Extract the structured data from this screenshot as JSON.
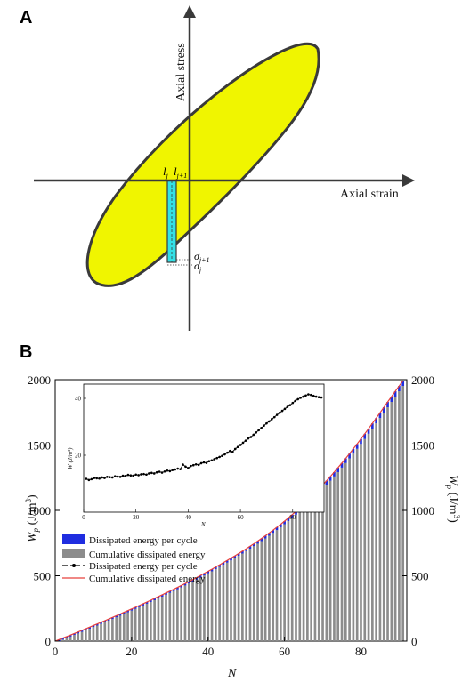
{
  "panel_a": {
    "letter": "A",
    "x_axis_label": "Axial strain",
    "y_axis_label": "Axial stress",
    "labels": {
      "l_j": "l",
      "l_j_sub": "j",
      "l_j1": "l",
      "l_j1_sub": "j+1",
      "sigma_j1": "σ",
      "sigma_j1_sub": "j+1",
      "sigma_j": "σ",
      "sigma_j_sub": "j"
    },
    "colors": {
      "loop_fill": "#f0f500",
      "strip_fill": "#33e0e6",
      "outline": "#3a3a3a"
    }
  },
  "panel_b": {
    "letter": "B",
    "left_ylabel_main": "W",
    "left_ylabel_sub": "p",
    "left_ylabel_unit": " (J/m",
    "left_ylabel_sup": "3",
    "left_ylabel_close": ")",
    "xlabel": "N",
    "inset_xlabel": "N",
    "inset_ylabel": "W (J/m³)",
    "colors": {
      "bar_gray": "#8c8c8c",
      "bar_blue": "#1f2de0",
      "line_red": "#e8413c",
      "line_black": "#000000"
    }
  },
  "legend": [
    {
      "label": "Dissipated energy per cycle",
      "marker": "blue-rect"
    },
    {
      "label": "Cumulative dissipated energy",
      "marker": "gray-rect"
    },
    {
      "label": "Dissipated energy per cycle",
      "marker": "black-dash-dot"
    },
    {
      "label": "Cumulative dissipated energy",
      "marker": "red-line"
    }
  ],
  "chart_data": [
    {
      "type": "bar",
      "title": "",
      "xlabel": "N",
      "ylabel": "Wp (J/m3)",
      "xlim": [
        0,
        92
      ],
      "ylim": [
        0,
        2000
      ],
      "x_ticks": [
        0,
        20,
        40,
        60,
        80
      ],
      "y_ticks": [
        0,
        500,
        1000,
        1500,
        2000
      ],
      "grid": false,
      "legend_placement": "lower-left",
      "n_cycles": 91,
      "x": [
        1,
        2,
        3,
        4,
        5,
        6,
        7,
        8,
        9,
        10,
        11,
        12,
        13,
        14,
        15,
        16,
        17,
        18,
        19,
        20,
        21,
        22,
        23,
        24,
        25,
        26,
        27,
        28,
        29,
        30,
        31,
        32,
        33,
        34,
        35,
        36,
        37,
        38,
        39,
        40,
        41,
        42,
        43,
        44,
        45,
        46,
        47,
        48,
        49,
        50,
        51,
        52,
        53,
        54,
        55,
        56,
        57,
        58,
        59,
        60,
        61,
        62,
        63,
        64,
        65,
        66,
        67,
        68,
        69,
        70,
        71,
        72,
        73,
        74,
        75,
        76,
        77,
        78,
        79,
        80,
        81,
        82,
        83,
        84,
        85,
        86,
        87,
        88,
        89,
        90,
        91
      ],
      "series": [
        {
          "name": "Dissipated energy per cycle",
          "values": [
            11.7,
            11.3,
            11.6,
            12.0,
            11.9,
            11.8,
            12.2,
            12.0,
            12.4,
            12.3,
            12.2,
            12.6,
            12.5,
            12.4,
            12.8,
            12.7,
            13.1,
            12.9,
            12.8,
            13.2,
            13.0,
            13.3,
            13.4,
            13.2,
            13.6,
            13.8,
            13.6,
            14.0,
            14.2,
            13.9,
            14.3,
            14.6,
            14.4,
            14.8,
            15.0,
            15.3,
            15.1,
            16.7,
            16.0,
            15.5,
            16.2,
            16.5,
            16.8,
            16.6,
            17.2,
            17.5,
            17.3,
            17.9,
            18.2,
            18.6,
            19.0,
            19.4,
            19.8,
            20.3,
            20.9,
            21.5,
            21.2,
            22.2,
            22.9,
            23.6,
            24.4,
            25.1,
            25.9,
            26.4,
            27.2,
            28.0,
            28.8,
            29.6,
            30.4,
            31.2,
            31.9,
            32.7,
            33.4,
            34.2,
            34.9,
            35.6,
            36.3,
            37.0,
            37.6,
            38.4,
            39.1,
            39.7,
            40.2,
            40.6,
            41.0,
            41.4,
            41.2,
            40.9,
            40.6,
            40.4,
            40.3
          ]
        },
        {
          "name": "Cumulative dissipated energy",
          "values": [
            11.7,
            23.0,
            34.6,
            46.6,
            58.5,
            70.3,
            82.5,
            94.5,
            106.9,
            119.2,
            131.4,
            144.0,
            156.5,
            168.9,
            181.7,
            194.4,
            207.5,
            220.4,
            233.2,
            246.4,
            259.4,
            272.7,
            286.1,
            299.3,
            312.9,
            326.7,
            340.3,
            354.3,
            368.5,
            382.4,
            396.7,
            411.3,
            425.7,
            440.5,
            455.5,
            470.8,
            485.9,
            502.6,
            518.6,
            534.1,
            550.3,
            566.8,
            583.6,
            600.2,
            617.4,
            634.9,
            652.2,
            670.1,
            688.3,
            706.9,
            725.9,
            745.3,
            765.1,
            785.4,
            806.3,
            827.8,
            849.0,
            871.2,
            894.1,
            917.7,
            942.1,
            967.2,
            993.1,
            1019.5,
            1046.7,
            1074.7,
            1103.5,
            1133.1,
            1163.5,
            1194.7,
            1226.6,
            1259.3,
            1292.7,
            1326.9,
            1361.8,
            1397.4,
            1433.7,
            1470.7,
            1508.3,
            1546.7,
            1585.8,
            1625.5,
            1665.7,
            1706.3,
            1747.3,
            1788.7,
            1829.9,
            1870.8,
            1911.4,
            1951.8,
            1992.1
          ]
        }
      ]
    },
    {
      "type": "line",
      "title": "",
      "xlabel": "N",
      "ylabel": "W (J/m³)",
      "xlim": [
        0,
        92
      ],
      "ylim": [
        0,
        45
      ],
      "x_ticks": [
        0,
        20,
        40,
        60,
        80
      ],
      "y_ticks": [
        20,
        40
      ],
      "grid": false,
      "series_ref": "Dissipated energy per cycle (same values as panel B main chart)"
    }
  ]
}
